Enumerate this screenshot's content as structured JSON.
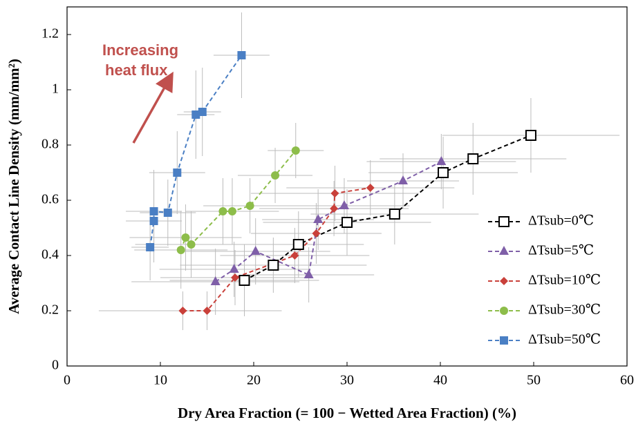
{
  "chart_data": {
    "type": "scatter",
    "x_label": "Dry Area Fraction (= 100 − Wetted Area Fraction) (%)",
    "y_label": "Average Contact Line Density (mm/mm²)",
    "annotation": [
      "Increasing",
      "heat flux"
    ],
    "xlim": [
      0,
      60
    ],
    "xticks": [
      0,
      10,
      20,
      30,
      40,
      50,
      60
    ],
    "ylim": [
      0,
      1.3
    ],
    "yticks": [
      0,
      0.2,
      0.4,
      0.6,
      0.8,
      1,
      1.2
    ],
    "grid": false,
    "legend": "right",
    "series": [
      {
        "name": "ΔTsub=0℃",
        "color": "#000000",
        "marker": "square-open",
        "x": [
          19.0,
          22.1,
          24.8,
          30.0,
          35.1,
          40.3,
          43.5,
          49.7
        ],
        "values": [
          0.31,
          0.365,
          0.44,
          0.52,
          0.55,
          0.7,
          0.75,
          0.835
        ],
        "xerr": [
          8,
          10,
          7,
          9,
          9,
          8,
          10,
          9.5
        ],
        "yerr": [
          0.13,
          0.1,
          0.12,
          0.12,
          0.11,
          0.13,
          0.13,
          0.135
        ]
      },
      {
        "name": "ΔTsub=5℃",
        "color": "#7f5fa8",
        "marker": "triangle",
        "x": [
          15.9,
          17.9,
          20.2,
          25.9,
          26.9,
          29.7,
          36.0,
          40.1
        ],
        "values": [
          0.305,
          0.35,
          0.415,
          0.33,
          0.53,
          0.58,
          0.67,
          0.74
        ],
        "xerr": [
          9,
          8,
          8,
          7,
          6,
          7,
          6,
          8
        ],
        "yerr": [
          0.12,
          0.1,
          0.12,
          0.1,
          0.11,
          0.1,
          0.1,
          0.1
        ]
      },
      {
        "name": "ΔTsub=10℃",
        "color": "#c9403a",
        "marker": "diamond",
        "x": [
          12.4,
          15.0,
          18.0,
          24.4,
          26.7,
          28.6,
          28.7,
          32.5
        ],
        "values": [
          0.2,
          0.2,
          0.32,
          0.4,
          0.48,
          0.57,
          0.625,
          0.645
        ],
        "xerr": [
          9,
          8,
          8,
          8,
          7,
          8,
          9,
          9
        ],
        "yerr": [
          0.07,
          0.07,
          0.1,
          0.1,
          0.11,
          0.1,
          0.1,
          0.1
        ]
      },
      {
        "name": "ΔTsub=30℃",
        "color": "#8dbd4a",
        "marker": "circle",
        "x": [
          12.2,
          12.7,
          13.3,
          16.7,
          17.7,
          19.6,
          22.3,
          24.5
        ],
        "values": [
          0.42,
          0.465,
          0.44,
          0.56,
          0.56,
          0.58,
          0.69,
          0.78
        ],
        "xerr": [
          5,
          6,
          6,
          4,
          5,
          5,
          4,
          3
        ],
        "yerr": [
          0.14,
          0.12,
          0.12,
          0.12,
          0.12,
          0.1,
          0.1,
          0.1
        ]
      },
      {
        "name": "ΔTsub=50℃",
        "color": "#4a7fc4",
        "marker": "square",
        "x": [
          8.9,
          9.3,
          9.3,
          10.8,
          11.8,
          13.8,
          14.5,
          18.7
        ],
        "values": [
          0.43,
          0.525,
          0.56,
          0.555,
          0.7,
          0.91,
          0.92,
          1.125
        ],
        "xerr": [
          2,
          3,
          3,
          3,
          3,
          2,
          2,
          3
        ],
        "yerr": [
          0.12,
          0.15,
          0.15,
          0.12,
          0.15,
          0.16,
          0.16,
          0.155
        ]
      }
    ]
  }
}
